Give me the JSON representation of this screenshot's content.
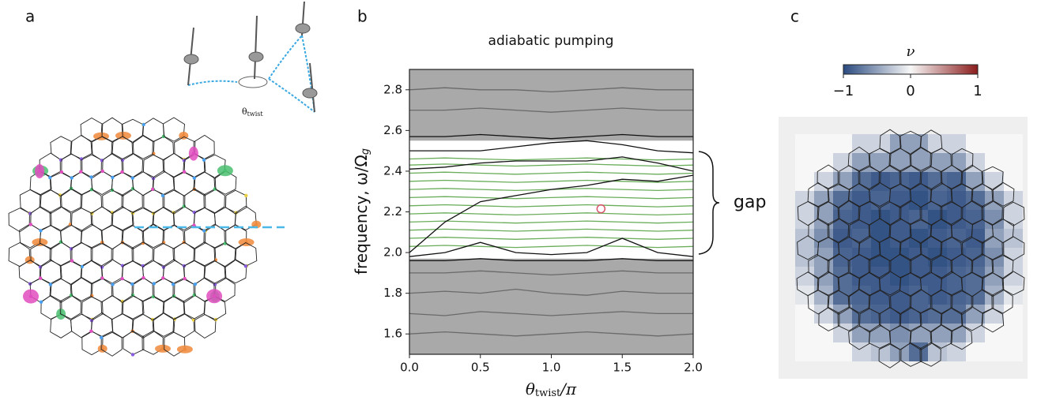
{
  "panel_labels": [
    "a",
    "b",
    "c"
  ],
  "inset_label": {
    "symbol": "θ",
    "subscript": "twist"
  },
  "chart_data": {
    "type": "line",
    "title": "adiabatic pumping",
    "x_label": {
      "symbol": "θ",
      "subscript": "twist",
      "suffix": "/π"
    },
    "y_label": {
      "text": "frequency, ω/Ω",
      "subscript": "g"
    },
    "annotation": "gap",
    "xlim": [
      0,
      2
    ],
    "xticks": [
      {
        "value": 0,
        "label": "0.0"
      },
      {
        "value": 0.5,
        "label": "0.5"
      },
      {
        "value": 1,
        "label": "1.0"
      },
      {
        "value": 1.5,
        "label": "1.5"
      },
      {
        "value": 2,
        "label": "2.0"
      }
    ],
    "ylim": [
      1.5,
      2.9
    ],
    "yticks": [
      {
        "value": 1.6,
        "label": "1.6"
      },
      {
        "value": 1.8,
        "label": "1.8"
      },
      {
        "value": 2,
        "label": "2.0"
      },
      {
        "value": 2.2,
        "label": "2.2"
      },
      {
        "value": 2.4,
        "label": "2.4"
      },
      {
        "value": 2.6,
        "label": "2.6"
      },
      2.8
    ],
    "bulk_bands": [
      [
        1.5,
        1.97
      ],
      [
        2.55,
        2.9
      ]
    ],
    "band_color": "#a9a9a9",
    "x": [
      0,
      0.25,
      0.5,
      0.75,
      1,
      1.25,
      1.5,
      1.75,
      2
    ],
    "series": [
      {
        "color": "#6a6a6a",
        "values": [
          1.6,
          1.61,
          1.6,
          1.59,
          1.6,
          1.61,
          1.6,
          1.59,
          1.6
        ]
      },
      {
        "color": "#6a6a6a",
        "values": [
          1.7,
          1.69,
          1.71,
          1.7,
          1.69,
          1.7,
          1.71,
          1.7,
          1.7
        ]
      },
      {
        "color": "#6a6a6a",
        "values": [
          1.8,
          1.81,
          1.8,
          1.82,
          1.8,
          1.79,
          1.81,
          1.8,
          1.8
        ]
      },
      {
        "color": "#6a6a6a",
        "values": [
          1.9,
          1.9,
          1.91,
          1.9,
          1.89,
          1.9,
          1.91,
          1.9,
          1.9
        ]
      },
      {
        "color": "#6a6a6a",
        "values": [
          2.7,
          2.7,
          2.71,
          2.7,
          2.69,
          2.7,
          2.71,
          2.7,
          2.7
        ]
      },
      {
        "color": "#6a6a6a",
        "values": [
          2.8,
          2.81,
          2.8,
          2.8,
          2.79,
          2.8,
          2.81,
          2.8,
          2.8
        ]
      },
      {
        "color": "#6aad5a",
        "values": [
          2.03,
          2.035,
          2.03,
          2.025,
          2.03,
          2.035,
          2.03,
          2.025,
          2.03
        ]
      },
      {
        "color": "#6aad5a",
        "values": [
          2.07,
          2.075,
          2.07,
          2.065,
          2.07,
          2.075,
          2.07,
          2.065,
          2.07
        ]
      },
      {
        "color": "#6aad5a",
        "values": [
          2.11,
          2.115,
          2.11,
          2.105,
          2.11,
          2.115,
          2.11,
          2.105,
          2.11
        ]
      },
      {
        "color": "#6aad5a",
        "values": [
          2.15,
          2.155,
          2.15,
          2.145,
          2.15,
          2.155,
          2.15,
          2.145,
          2.15
        ]
      },
      {
        "color": "#6aad5a",
        "values": [
          2.19,
          2.195,
          2.19,
          2.185,
          2.19,
          2.195,
          2.19,
          2.185,
          2.19
        ]
      },
      {
        "color": "#6aad5a",
        "values": [
          2.23,
          2.235,
          2.23,
          2.225,
          2.23,
          2.235,
          2.23,
          2.225,
          2.23
        ]
      },
      {
        "color": "#6aad5a",
        "values": [
          2.27,
          2.275,
          2.27,
          2.265,
          2.27,
          2.275,
          2.27,
          2.265,
          2.27
        ]
      },
      {
        "color": "#6aad5a",
        "values": [
          2.31,
          2.315,
          2.31,
          2.305,
          2.31,
          2.315,
          2.31,
          2.305,
          2.31
        ]
      },
      {
        "color": "#6aad5a",
        "values": [
          2.35,
          2.355,
          2.35,
          2.345,
          2.35,
          2.355,
          2.35,
          2.345,
          2.35
        ]
      },
      {
        "color": "#6aad5a",
        "values": [
          2.39,
          2.395,
          2.39,
          2.385,
          2.39,
          2.395,
          2.39,
          2.385,
          2.39
        ]
      },
      {
        "color": "#6aad5a",
        "values": [
          2.43,
          2.435,
          2.43,
          2.425,
          2.43,
          2.435,
          2.43,
          2.425,
          2.43
        ]
      },
      {
        "color": "#6aad5a",
        "values": [
          2.46,
          2.465,
          2.46,
          2.455,
          2.46,
          2.465,
          2.46,
          2.455,
          2.46
        ]
      },
      {
        "color": "#111111",
        "values": [
          2.0,
          2.15,
          2.25,
          2.28,
          2.31,
          2.33,
          2.36,
          2.35,
          2.38
        ]
      },
      {
        "color": "#111111",
        "values": [
          1.98,
          2.0,
          2.05,
          2.0,
          1.99,
          2.0,
          2.07,
          2.0,
          1.98
        ]
      },
      {
        "color": "#111111",
        "values": [
          2.5,
          2.5,
          2.5,
          2.52,
          2.54,
          2.55,
          2.53,
          2.5,
          2.49
        ]
      },
      {
        "color": "#111111",
        "values": [
          2.41,
          2.42,
          2.44,
          2.45,
          2.45,
          2.45,
          2.47,
          2.44,
          2.4
        ]
      },
      {
        "color": "#111111",
        "values": [
          1.96,
          1.96,
          1.97,
          1.96,
          1.96,
          1.96,
          1.97,
          1.96,
          1.96
        ]
      },
      {
        "color": "#111111",
        "values": [
          2.57,
          2.57,
          2.58,
          2.57,
          2.56,
          2.57,
          2.58,
          2.57,
          2.57
        ]
      }
    ],
    "marker": {
      "x": 1.35,
      "y": 2.215,
      "color": "#d9536a"
    }
  },
  "colorbar": {
    "label": "ν",
    "lim": [
      -1,
      1
    ],
    "colors": [
      "#2a4a7f",
      "#f7f7f7",
      "#8b1c1c"
    ],
    "ticks": [
      {
        "value": -1,
        "label": "−1"
      },
      0,
      1
    ]
  },
  "nu_map": [
    [
      0,
      0,
      0,
      -0.2,
      -0.2,
      -0.5,
      -0.5,
      -0.2,
      -0.2,
      0,
      0,
      0
    ],
    [
      0,
      0,
      -0.2,
      -0.5,
      -0.5,
      -0.5,
      -0.5,
      -0.5,
      -0.5,
      -0.2,
      0,
      0
    ],
    [
      0,
      -0.2,
      -0.5,
      -0.8,
      -0.9,
      -0.85,
      -0.9,
      -0.8,
      -0.85,
      -0.5,
      -0.2,
      0
    ],
    [
      -0.2,
      -0.5,
      -0.8,
      -0.9,
      -0.85,
      -0.9,
      -0.95,
      -0.85,
      -0.9,
      -0.8,
      -0.5,
      -0.2
    ],
    [
      -0.2,
      -0.5,
      -0.85,
      -0.9,
      -0.95,
      -0.9,
      -0.85,
      -0.95,
      -0.9,
      -0.85,
      -0.6,
      -0.2
    ],
    [
      -0.3,
      -0.6,
      -0.9,
      -0.85,
      -0.95,
      -0.9,
      -0.95,
      -0.9,
      -0.85,
      -0.9,
      -0.5,
      -0.3
    ],
    [
      -0.3,
      -0.5,
      -0.85,
      -0.9,
      -0.95,
      -0.95,
      -0.9,
      -0.95,
      -0.9,
      -0.85,
      -0.6,
      -0.2
    ],
    [
      -0.2,
      -0.5,
      -0.8,
      -0.9,
      -0.9,
      -0.95,
      -0.9,
      -0.9,
      -0.85,
      -0.8,
      -0.5,
      -0.2
    ],
    [
      -0.1,
      -0.4,
      -0.8,
      -0.85,
      -0.9,
      -0.9,
      -0.85,
      -0.9,
      -0.85,
      -0.8,
      -0.4,
      -0.1
    ],
    [
      0,
      -0.2,
      -0.5,
      -0.8,
      -0.85,
      -0.9,
      -0.85,
      -0.8,
      -0.8,
      -0.5,
      -0.2,
      0
    ],
    [
      0,
      0,
      -0.2,
      -0.5,
      -0.5,
      -0.6,
      -0.5,
      -0.5,
      -0.5,
      -0.2,
      0,
      0
    ],
    [
      0,
      0,
      0,
      -0.2,
      -0.3,
      -0.5,
      -0.8,
      -0.3,
      -0.2,
      0,
      0,
      0
    ]
  ]
}
